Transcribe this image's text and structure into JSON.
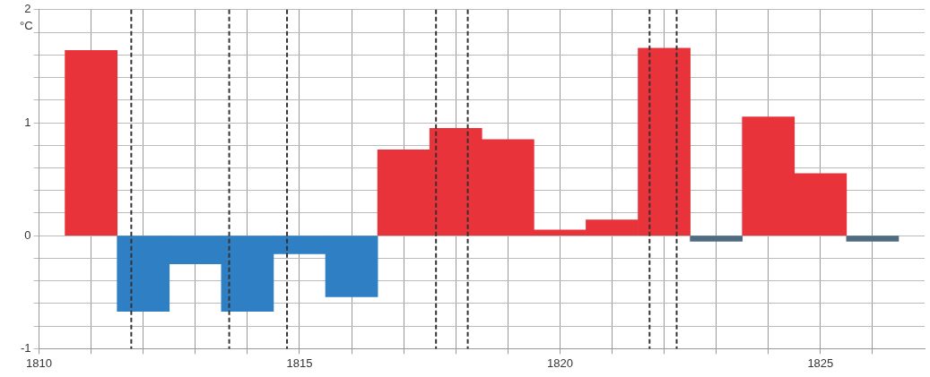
{
  "chart_data": {
    "type": "bar",
    "ylabel": "°C",
    "x": [
      1811,
      1812,
      1813,
      1814,
      1815,
      1816,
      1817,
      1818,
      1819,
      1820,
      1821,
      1822,
      1823,
      1824,
      1825,
      1826
    ],
    "values": [
      1.64,
      -0.67,
      -0.25,
      -0.67,
      -0.16,
      -0.54,
      0.76,
      0.95,
      0.85,
      0.05,
      0.14,
      1.66,
      -0.05,
      1.05,
      0.55,
      -0.05
    ],
    "colors": [
      "#e8333a",
      "#2f7fc4",
      "#2f7fc4",
      "#2f7fc4",
      "#2f7fc4",
      "#2f7fc4",
      "#e8333a",
      "#e8333a",
      "#e8333a",
      "#e8333a",
      "#e8333a",
      "#e8333a",
      "#4f6b80",
      "#e8333a",
      "#e8333a",
      "#4f6b80"
    ],
    "xlim": [
      1810,
      1827
    ],
    "xticks": [
      1810,
      {
        "value": 1811,
        "label": null
      },
      {
        "value": 1812,
        "label": null
      },
      {
        "value": 1813,
        "label": null
      },
      {
        "value": 1814,
        "label": null
      },
      1815,
      {
        "value": 1816,
        "label": null
      },
      {
        "value": 1817,
        "label": null
      },
      {
        "value": 1818,
        "label": null
      },
      {
        "value": 1819,
        "label": null
      },
      1820,
      {
        "value": 1821,
        "label": null
      },
      {
        "value": 1822,
        "label": null
      },
      {
        "value": 1823,
        "label": null
      },
      {
        "value": 1824,
        "label": null
      },
      1825,
      {
        "value": 1826,
        "label": null
      }
    ],
    "ylim": [
      -1,
      2
    ],
    "yticks": [
      -1,
      {
        "value": -0.8,
        "label": null
      },
      {
        "value": -0.6,
        "label": null
      },
      {
        "value": -0.4,
        "label": null
      },
      {
        "value": -0.2,
        "label": null
      },
      0,
      {
        "value": 0.2,
        "label": null
      },
      {
        "value": 0.4,
        "label": null
      },
      {
        "value": 0.6,
        "label": null
      },
      {
        "value": 0.8,
        "label": null
      },
      1,
      {
        "value": 1.2,
        "label": null
      },
      {
        "value": 1.4,
        "label": null
      },
      {
        "value": 1.6,
        "label": null
      },
      {
        "value": 1.8,
        "label": null
      },
      2
    ],
    "grid": true,
    "ref_lines": [
      {
        "axis": "x",
        "value": 1811.77,
        "color": "#333333",
        "line_style": "dashed"
      },
      {
        "axis": "x",
        "value": 1813.65,
        "color": "#333333",
        "line_style": "dashed"
      },
      {
        "axis": "x",
        "value": 1814.76,
        "color": "#333333",
        "line_style": "dashed"
      },
      {
        "axis": "x",
        "value": 1817.62,
        "color": "#333333",
        "line_style": "dashed"
      },
      {
        "axis": "x",
        "value": 1818.23,
        "color": "#333333",
        "line_style": "dashed"
      },
      {
        "axis": "x",
        "value": 1821.72,
        "color": "#333333",
        "line_style": "dashed"
      },
      {
        "axis": "x",
        "value": 1822.24,
        "color": "#333333",
        "line_style": "dashed"
      }
    ]
  }
}
